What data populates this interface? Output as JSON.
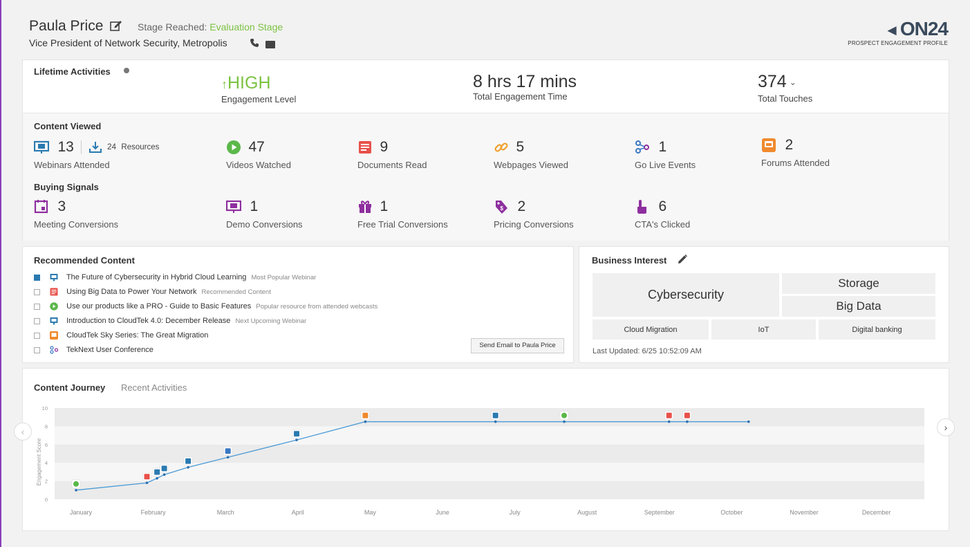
{
  "header": {
    "name": "Paula Price",
    "stage_label": "Stage Reached:",
    "stage_value": "Evaluation Stage",
    "title": "Vice President of Network Security, Metropolis",
    "logo_text": "ON24",
    "logo_subtitle": "PROSPECT ENGAGEMENT PROFILE"
  },
  "lifetime": {
    "title": "Lifetime Activities",
    "engagement_level_value": "HIGH",
    "engagement_level_label": "Engagement Level",
    "engagement_time_value": "8 hrs 17 mins",
    "engagement_time_label": "Total Engagement Time",
    "touches_value": "374",
    "touches_label": "Total Touches"
  },
  "content_viewed": {
    "title": "Content Viewed",
    "webinars_count": "13",
    "resources_count": "24",
    "resources_label": "Resources",
    "webinars_label": "Webinars Attended",
    "videos_count": "47",
    "videos_label": "Videos Watched",
    "documents_count": "9",
    "documents_label": "Documents Read",
    "webpages_count": "5",
    "webpages_label": "Webpages Viewed",
    "golive_count": "1",
    "golive_label": "Go Live Events",
    "forums_count": "2",
    "forums_label": "Forums Attended"
  },
  "buying_signals": {
    "title": "Buying Signals",
    "meeting_count": "3",
    "meeting_label": "Meeting Conversions",
    "demo_count": "1",
    "demo_label": "Demo Conversions",
    "trial_count": "1",
    "trial_label": "Free Trial Conversions",
    "pricing_count": "2",
    "pricing_label": "Pricing Conversions",
    "cta_count": "6",
    "cta_label": "CTA's Clicked"
  },
  "recommended": {
    "title": "Recommended Content",
    "items": [
      {
        "title": "The Future of Cybersecurity in Hybrid Cloud Learning",
        "note": "Most Popular Webinar",
        "icon": "webinar-icon",
        "checked": true
      },
      {
        "title": "Using Big Data to Power Your Network",
        "note": "Recommended Content",
        "icon": "document-icon",
        "checked": false
      },
      {
        "title": "Use our products like a PRO - Guide to Basic Features",
        "note": "Popular resource from attended webcasts",
        "icon": "video-play-icon",
        "checked": false
      },
      {
        "title": "Introduction to CloudTek 4.0: December Release",
        "note": "Next Upcoming Webinar",
        "icon": "webinar-icon",
        "checked": false
      },
      {
        "title": "CloudTek Sky Series: The Great Migration",
        "note": "",
        "icon": "forum-icon",
        "checked": false
      },
      {
        "title": "TekNext User Conference",
        "note": "",
        "icon": "golive-icon",
        "checked": false
      }
    ],
    "send_button": "Send Email to Paula Price"
  },
  "business_interest": {
    "title": "Business Interest",
    "primary": "Cybersecurity",
    "secondary_1": "Storage",
    "secondary_2": "Big Data",
    "tertiary_1": "Cloud Migration",
    "tertiary_2": "IoT",
    "tertiary_3": "Digital banking",
    "last_updated": "Last Updated: 6/25 10:52:09 AM"
  },
  "journey": {
    "tab_active": "Content Journey",
    "tab_inactive": "Recent Activities",
    "y_axis_label": "Engagement Score",
    "y_ticks": [
      "0",
      "2",
      "4",
      "6",
      "8",
      "10"
    ],
    "months": [
      "January",
      "February",
      "March",
      "April",
      "May",
      "June",
      "July",
      "August",
      "September",
      "October",
      "November",
      "December"
    ]
  },
  "colors": {
    "accent_green": "#7cc242",
    "webinar_blue": "#2a7ab0",
    "document_red": "#e8514a",
    "video_green": "#5bb84a",
    "webpage_orange": "#f0a030",
    "golive_blue": "#3a78c2",
    "forum_orange": "#f08a2e",
    "buying_purple": "#8e2f9f",
    "line_blue": "#4a9ad6"
  },
  "chart_data": {
    "type": "line",
    "title": "",
    "xlabel": "",
    "ylabel": "Engagement Score",
    "ylim": [
      0,
      10
    ],
    "x_categories": [
      "January",
      "February",
      "March",
      "April",
      "May",
      "June",
      "July",
      "August",
      "September",
      "October",
      "November",
      "December"
    ],
    "series": [
      {
        "points": [
          {
            "month": 0.0,
            "value": 1.0,
            "icon": "video"
          },
          {
            "month": 0.98,
            "value": 1.8,
            "icon": "document"
          },
          {
            "month": 1.12,
            "value": 2.3,
            "icon": "webinar"
          },
          {
            "month": 1.22,
            "value": 2.7,
            "icon": "webinar"
          },
          {
            "month": 1.55,
            "value": 3.5,
            "icon": "webinar"
          },
          {
            "month": 2.1,
            "value": 4.6,
            "icon": "golive"
          },
          {
            "month": 3.05,
            "value": 6.5,
            "icon": "webinar"
          },
          {
            "month": 4.0,
            "value": 8.5,
            "icon": "forum"
          },
          {
            "month": 5.8,
            "value": 8.5,
            "icon": "webinar"
          },
          {
            "month": 6.75,
            "value": 8.5,
            "icon": "video"
          },
          {
            "month": 8.2,
            "value": 8.5,
            "icon": "document"
          },
          {
            "month": 8.45,
            "value": 8.5,
            "icon": "document"
          },
          {
            "month": 9.3,
            "value": 8.5,
            "icon": ""
          }
        ]
      }
    ],
    "grid": true
  }
}
